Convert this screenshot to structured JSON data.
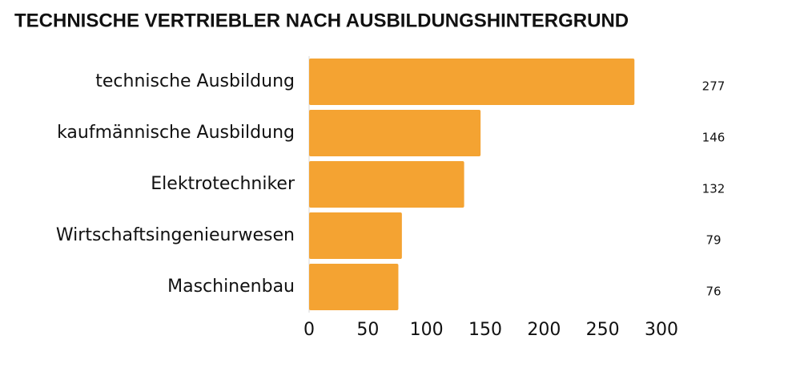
{
  "chart_data": {
    "type": "hbar",
    "title": "TECHNISCHE VERTRIEBLER NACH AUSBILDUNGSHINTERGRUND",
    "categories": [
      "technische Ausbildung",
      "kaufmännische Ausbildung",
      "Elektrotechniker",
      "Wirtschaftsingenieurwesen",
      "Maschinenbau"
    ],
    "values": [
      277,
      146,
      132,
      79,
      76
    ],
    "color": "#f4a332",
    "xlim": [
      0,
      300
    ],
    "xticks": [
      0,
      50,
      100,
      150,
      200,
      250,
      300
    ]
  }
}
